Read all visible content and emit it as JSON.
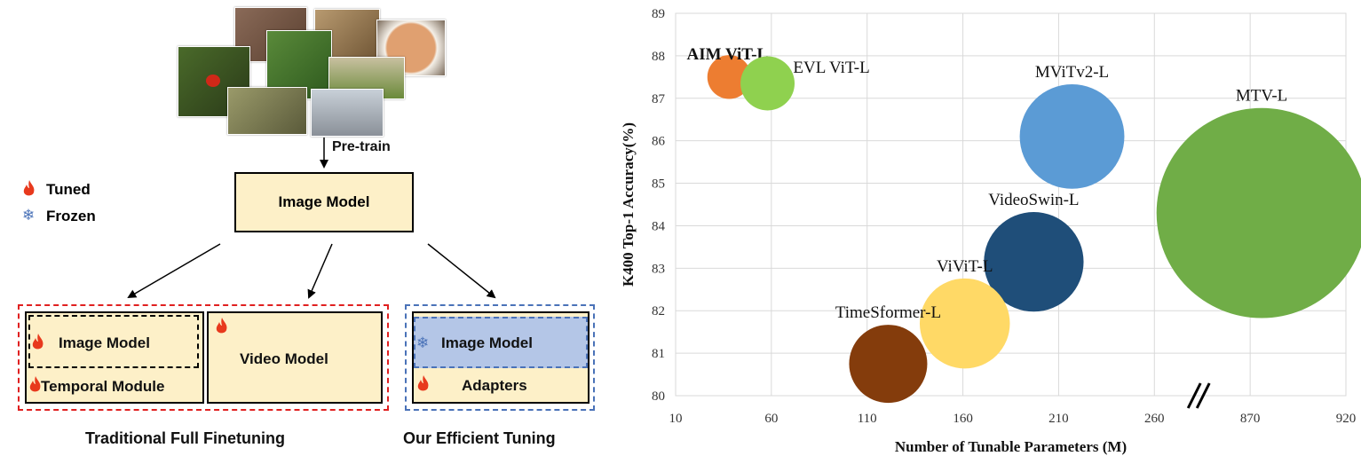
{
  "diagram": {
    "pretrain_label": "Pre-train",
    "image_model_label": "Image Model",
    "legend": {
      "tuned": "Tuned",
      "frozen": "Frozen"
    },
    "traditional": {
      "image_model": "Image Model",
      "temporal_module": "Temporal Module",
      "video_model": "Video Model",
      "caption": "Traditional Full Finetuning"
    },
    "efficient": {
      "image_model": "Image Model",
      "adapters": "Adapters",
      "caption": "Our Efficient Tuning"
    },
    "colors": {
      "tuned": "#e8391d",
      "frozen": "#4a72b8",
      "box_fill": "#fdf0c8",
      "frozen_fill": "#b4c6e7",
      "red_dash": "#e02020",
      "blue_dash": "#4a72b8"
    }
  },
  "chart_data": {
    "type": "scatter",
    "xlabel": "Number of Tunable Parameters (M)",
    "ylabel": "K400 Top-1 Accuracy(%)",
    "ylim": [
      80,
      89
    ],
    "yticks": [
      "80",
      "81",
      "82",
      "83",
      "84",
      "85",
      "86",
      "87",
      "88",
      "89"
    ],
    "xticks": [
      "10",
      "60",
      "110",
      "160",
      "210",
      "260",
      "870",
      "920"
    ],
    "x_axis_break": "between 260 and 870",
    "grid": true,
    "points": [
      {
        "label": "AIM ViT-L",
        "x": 38,
        "y": 87.5,
        "size": 38,
        "color": "#ed7d31",
        "label_bold": true
      },
      {
        "label": "EVL ViT-L",
        "x": 58,
        "y": 87.35,
        "size": 58,
        "color": "#8fd14f",
        "label_bold": false
      },
      {
        "label": "MViTv2-L",
        "x": 217,
        "y": 86.1,
        "size": 217,
        "color": "#5b9bd5",
        "label_bold": false
      },
      {
        "label": "MTV-L",
        "x": 876,
        "y": 84.3,
        "size": 876,
        "color": "#70ad47",
        "label_bold": false
      },
      {
        "label": "VideoSwin-L",
        "x": 197,
        "y": 83.15,
        "size": 197,
        "color": "#1f4e79",
        "label_bold": false
      },
      {
        "label": "ViViT-L",
        "x": 161,
        "y": 81.7,
        "size": 161,
        "color": "#ffd966",
        "label_bold": false
      },
      {
        "label": "TimeSformer-L",
        "x": 121,
        "y": 80.75,
        "size": 121,
        "color": "#843c0c",
        "label_bold": false
      }
    ]
  }
}
